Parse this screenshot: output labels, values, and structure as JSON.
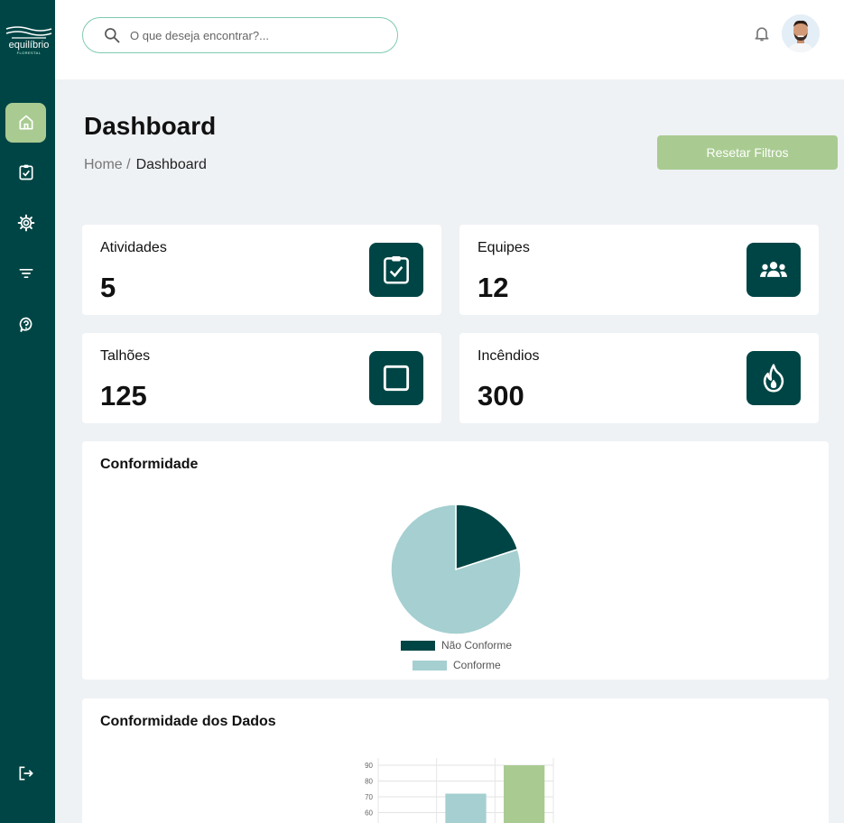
{
  "sidebar": {
    "logo_text": "equilíbrio",
    "logo_sub": "FLORESTAL",
    "items": [
      {
        "name": "home",
        "icon": "home-icon",
        "active": true
      },
      {
        "name": "activities",
        "icon": "clipboard-check-icon",
        "active": false
      },
      {
        "name": "settings",
        "icon": "gear-icon",
        "active": false
      },
      {
        "name": "filters",
        "icon": "filter-icon",
        "active": false
      },
      {
        "name": "help",
        "icon": "help-icon",
        "active": false
      }
    ],
    "logout_icon": "logout-icon"
  },
  "search": {
    "placeholder": "O que deseja encontrar?..."
  },
  "header": {
    "title": "Dashboard",
    "breadcrumb_home": "Home /",
    "breadcrumb_current": "Dashboard",
    "reset_label": "Resetar Filtros"
  },
  "stats": [
    {
      "label": "Atividades",
      "value": "5",
      "icon": "clipboard-check-icon"
    },
    {
      "label": "Equipes",
      "value": "12",
      "icon": "team-icon"
    },
    {
      "label": "Talhões",
      "value": "125",
      "icon": "square-icon"
    },
    {
      "label": "Incêndios",
      "value": "300",
      "icon": "fire-icon"
    }
  ],
  "conformidade": {
    "title": "Conformidade",
    "chart_data": {
      "type": "pie",
      "categories": [
        "Não Conforme",
        "Conforme"
      ],
      "values": [
        20,
        80
      ],
      "colors": [
        "#004545",
        "#a5cfd0"
      ],
      "legend": "bottom"
    }
  },
  "dados": {
    "title": "Conformidade dos Dados",
    "chart_data": {
      "type": "bar",
      "categories": [
        "",
        "",
        ""
      ],
      "values": [
        null,
        72,
        90
      ],
      "colors": [
        "#a5cfd0",
        "#a5cfd0",
        "#a9cb91"
      ],
      "ytick_labels": [
        "90",
        "80",
        "70",
        "60"
      ],
      "grid": true
    }
  },
  "colors": {
    "primary": "#004545",
    "accent": "#a9cb91",
    "light": "#a5cfd0"
  }
}
